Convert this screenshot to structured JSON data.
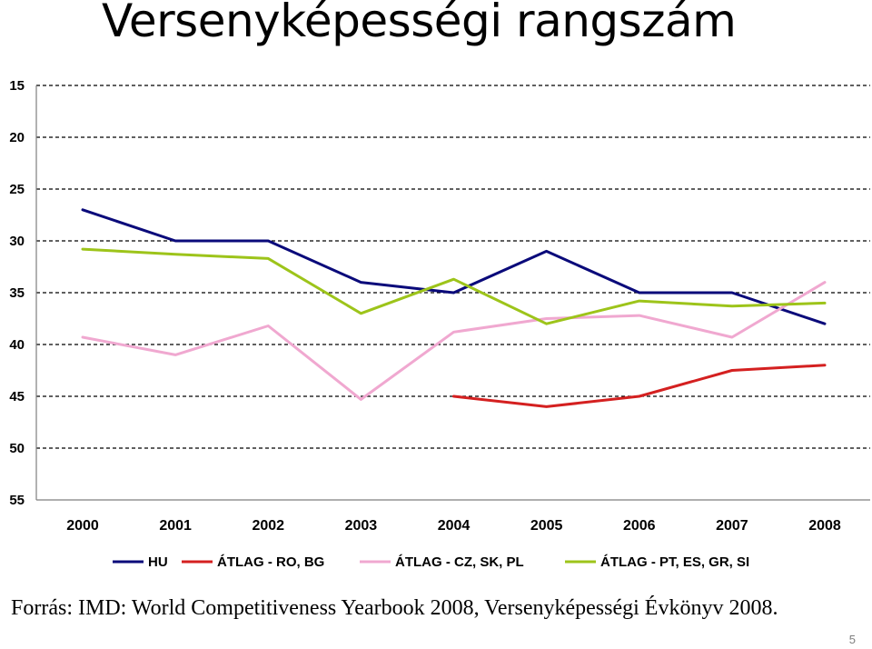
{
  "slide": {
    "title": "Versenyképességi rangszám",
    "source": "Forrás: IMD: World Competitiveness Yearbook 2008, Versenyképességi Évkönyv 2008.",
    "page_number": "5"
  },
  "chart_data": {
    "type": "line",
    "title": "",
    "xlabel": "",
    "ylabel": "",
    "categories": [
      "2000",
      "2001",
      "2002",
      "2003",
      "2004",
      "2005",
      "2006",
      "2007",
      "2008"
    ],
    "ylim": [
      15,
      55
    ],
    "y_inverted": true,
    "y_ticks": [
      15,
      20,
      25,
      30,
      35,
      40,
      45,
      50,
      55
    ],
    "grid": "horizontal dashed",
    "legend_position": "bottom",
    "series": [
      {
        "name": "HU",
        "color": "#0a0a7a",
        "values": [
          27,
          30,
          30,
          34,
          35,
          31,
          35,
          35,
          38
        ]
      },
      {
        "name": "ÁTLAG - RO, BG",
        "color": "#d42020",
        "values": [
          null,
          null,
          null,
          null,
          45,
          46,
          45,
          42.5,
          42
        ]
      },
      {
        "name": "ÁTLAG - CZ, SK, PL",
        "color": "#f0a8d0",
        "values": [
          39.3,
          41,
          38.2,
          45.3,
          38.8,
          37.5,
          37.2,
          39.3,
          34
        ]
      },
      {
        "name": "ÁTLAG - PT, ES, GR, SI",
        "color": "#9dc41a",
        "values": [
          30.8,
          31.3,
          31.7,
          37,
          33.7,
          38,
          35.8,
          36.3,
          36
        ]
      }
    ]
  }
}
